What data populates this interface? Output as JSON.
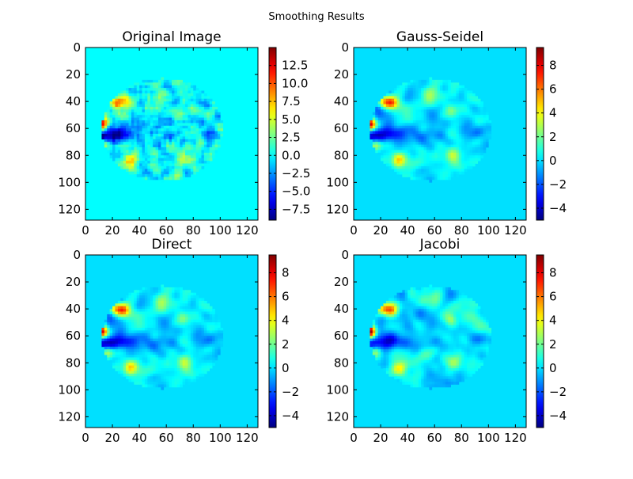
{
  "figure": {
    "title": "Smoothing Results"
  },
  "chart_data": [
    {
      "type": "heatmap",
      "title": "Original Image",
      "colormap": "jet",
      "x_range": [
        0,
        128
      ],
      "y_range": [
        0,
        128
      ],
      "y_inverted": true,
      "x_ticks": [
        "0",
        "20",
        "40",
        "60",
        "80",
        "100",
        "120"
      ],
      "y_ticks": [
        "0",
        "20",
        "40",
        "60",
        "80",
        "100",
        "120"
      ],
      "background_value": 0,
      "colorbar": {
        "min": -9.0,
        "max": 15.0,
        "ticks": [
          -7.5,
          -5.0,
          -2.5,
          0.0,
          2.5,
          5.0,
          7.5,
          10.0,
          12.5
        ],
        "tick_labels": [
          "−7.5",
          "−5.0",
          "−2.5",
          "0.0",
          "2.5",
          "5.0",
          "7.5",
          "10.0",
          "12.5"
        ]
      }
    },
    {
      "type": "heatmap",
      "title": "Gauss-Seidel",
      "colormap": "jet",
      "x_range": [
        0,
        128
      ],
      "y_range": [
        0,
        128
      ],
      "y_inverted": true,
      "x_ticks": [
        "0",
        "20",
        "40",
        "60",
        "80",
        "100",
        "120"
      ],
      "y_ticks": [
        "0",
        "20",
        "40",
        "60",
        "80",
        "100",
        "120"
      ],
      "background_value": 0,
      "colorbar": {
        "min": -5.0,
        "max": 9.5,
        "ticks": [
          -4,
          -2,
          0,
          2,
          4,
          6,
          8
        ],
        "tick_labels": [
          "−4",
          "−2",
          "0",
          "2",
          "4",
          "6",
          "8"
        ]
      }
    },
    {
      "type": "heatmap",
      "title": "Direct",
      "colormap": "jet",
      "x_range": [
        0,
        128
      ],
      "y_range": [
        0,
        128
      ],
      "y_inverted": true,
      "x_ticks": [
        "0",
        "20",
        "40",
        "60",
        "80",
        "100",
        "120"
      ],
      "y_ticks": [
        "0",
        "20",
        "40",
        "60",
        "80",
        "100",
        "120"
      ],
      "background_value": 0,
      "colorbar": {
        "min": -5.0,
        "max": 9.5,
        "ticks": [
          -4,
          -2,
          0,
          2,
          4,
          6,
          8
        ],
        "tick_labels": [
          "−4",
          "−2",
          "0",
          "2",
          "4",
          "6",
          "8"
        ]
      }
    },
    {
      "type": "heatmap",
      "title": "Jacobi",
      "colormap": "jet",
      "x_range": [
        0,
        128
      ],
      "y_range": [
        0,
        128
      ],
      "y_inverted": true,
      "x_ticks": [
        "0",
        "20",
        "40",
        "60",
        "80",
        "100",
        "120"
      ],
      "y_ticks": [
        "0",
        "20",
        "40",
        "60",
        "80",
        "100",
        "120"
      ],
      "background_value": 0,
      "colorbar": {
        "min": -5.0,
        "max": 9.5,
        "ticks": [
          -4,
          -2,
          0,
          2,
          4,
          6,
          8
        ],
        "tick_labels": [
          "−4",
          "−2",
          "0",
          "2",
          "4",
          "6",
          "8"
        ]
      }
    }
  ]
}
